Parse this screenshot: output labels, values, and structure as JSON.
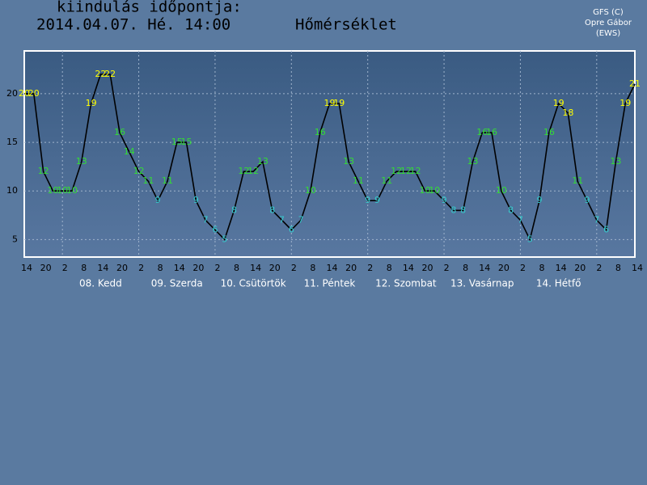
{
  "chart_data": {
    "type": "line",
    "title_label": "kiindulás időpontja:",
    "run_time": "2014.04.07. Hé. 14:00",
    "title": "Hőmérséklet",
    "credits": [
      "GFS (C)",
      "Opre Gábor",
      "(EWS)"
    ],
    "categories": [
      "14",
      null,
      "20",
      null,
      "2",
      null,
      "8",
      null,
      "14",
      null,
      "20",
      null,
      "2",
      null,
      "8",
      null,
      "14",
      null,
      "20",
      null,
      "2",
      null,
      "8",
      null,
      "14",
      null,
      "20",
      null,
      "2",
      null,
      "8",
      null,
      "14",
      null,
      "20",
      null,
      "2",
      null,
      "8",
      null,
      "14",
      null,
      "20",
      null,
      "2",
      null,
      "8",
      null,
      "14",
      null,
      "20",
      null,
      "2",
      null,
      "8",
      null,
      "14",
      null,
      "20",
      null,
      "2",
      null,
      "8",
      null,
      "14"
    ],
    "day_labels": [
      "08. Kedd",
      "09. Szerda",
      "10. Csütörtök",
      "11. Péntek",
      "12. Szombat",
      "13. Vasárnap",
      "14. Hétfő"
    ],
    "values": [
      20,
      20,
      12,
      10,
      10,
      10,
      13,
      19,
      22,
      22,
      16,
      14,
      12,
      11,
      9,
      11,
      15,
      15,
      9,
      7,
      6,
      5,
      8,
      12,
      12,
      13,
      8,
      7,
      6,
      7,
      10,
      16,
      19,
      19,
      13,
      11,
      9,
      9,
      11,
      12,
      12,
      12,
      10,
      10,
      9,
      8,
      8,
      13,
      16,
      16,
      10,
      8,
      7,
      5,
      9,
      16,
      19,
      18,
      11,
      9,
      7,
      6,
      13,
      19,
      21
    ],
    "label_colors": [
      "#ff0",
      "#ff0",
      "#3d3",
      "#3d3",
      "#3d3",
      "#3d3",
      "#3d3",
      "#ff0",
      "#ff0",
      "#ff0",
      "#3d3",
      "#3d3",
      "#3d3",
      "#3d3",
      "#3cc",
      "#3d3",
      "#3d3",
      "#3d3",
      "#3cc",
      "#3cc",
      "#3cc",
      "#3cc",
      "#3cc",
      "#3d3",
      "#3d3",
      "#3d3",
      "#3cc",
      "#3cc",
      "#3cc",
      "#3cc",
      "#3d3",
      "#3d3",
      "#ff0",
      "#ff0",
      "#3d3",
      "#3d3",
      "#3cc",
      "#3cc",
      "#3d3",
      "#3d3",
      "#3d3",
      "#3d3",
      "#3d3",
      "#3d3",
      "#3cc",
      "#3cc",
      "#3cc",
      "#3d3",
      "#3d3",
      "#3d3",
      "#3d3",
      "#3cc",
      "#3cc",
      "#3cc",
      "#3cc",
      "#3d3",
      "#ff0",
      "#ff0",
      "#3d3",
      "#3cc",
      "#3cc",
      "#3cc",
      "#3d3",
      "#ff0",
      "#ff0"
    ],
    "color": "#000000",
    "ylim": [
      3.2,
      24.4
    ],
    "yticks": [
      5,
      10,
      15,
      20
    ],
    "grid": true
  }
}
